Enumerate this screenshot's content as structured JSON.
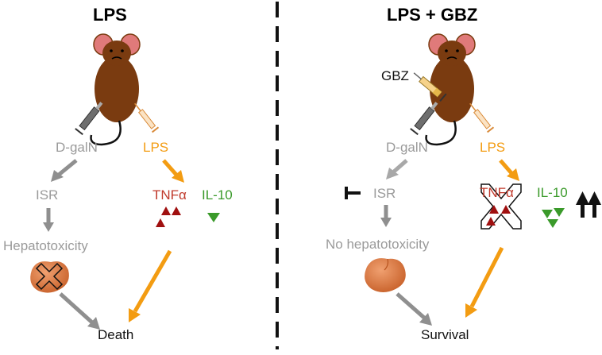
{
  "left": {
    "title": "LPS",
    "dgaln": "D-galN",
    "lps": "LPS",
    "isr": "ISR",
    "tnfa": "TNFα",
    "il10": "IL-10",
    "hepatotoxicity": "Hepatotoxicity",
    "outcome": "Death"
  },
  "right": {
    "title": "LPS + GBZ",
    "gbz": "GBZ",
    "dgaln": "D-galN",
    "lps": "LPS",
    "isr": "ISR",
    "tnfa": "TNFα",
    "il10": "IL-10",
    "hepatotoxicity": "No hepatotoxicity",
    "outcome": "Survival"
  },
  "colors": {
    "gray_text": "#9a9a9a",
    "gray_arrow": "#8f8f8f",
    "orange": "#f39c12",
    "red": "#c0392b",
    "dark_red": "#a01010",
    "green": "#3a9a2a",
    "mouse_body": "#7a3b10",
    "mouse_ear": "#e07a7a",
    "liver": "#d9743a"
  }
}
